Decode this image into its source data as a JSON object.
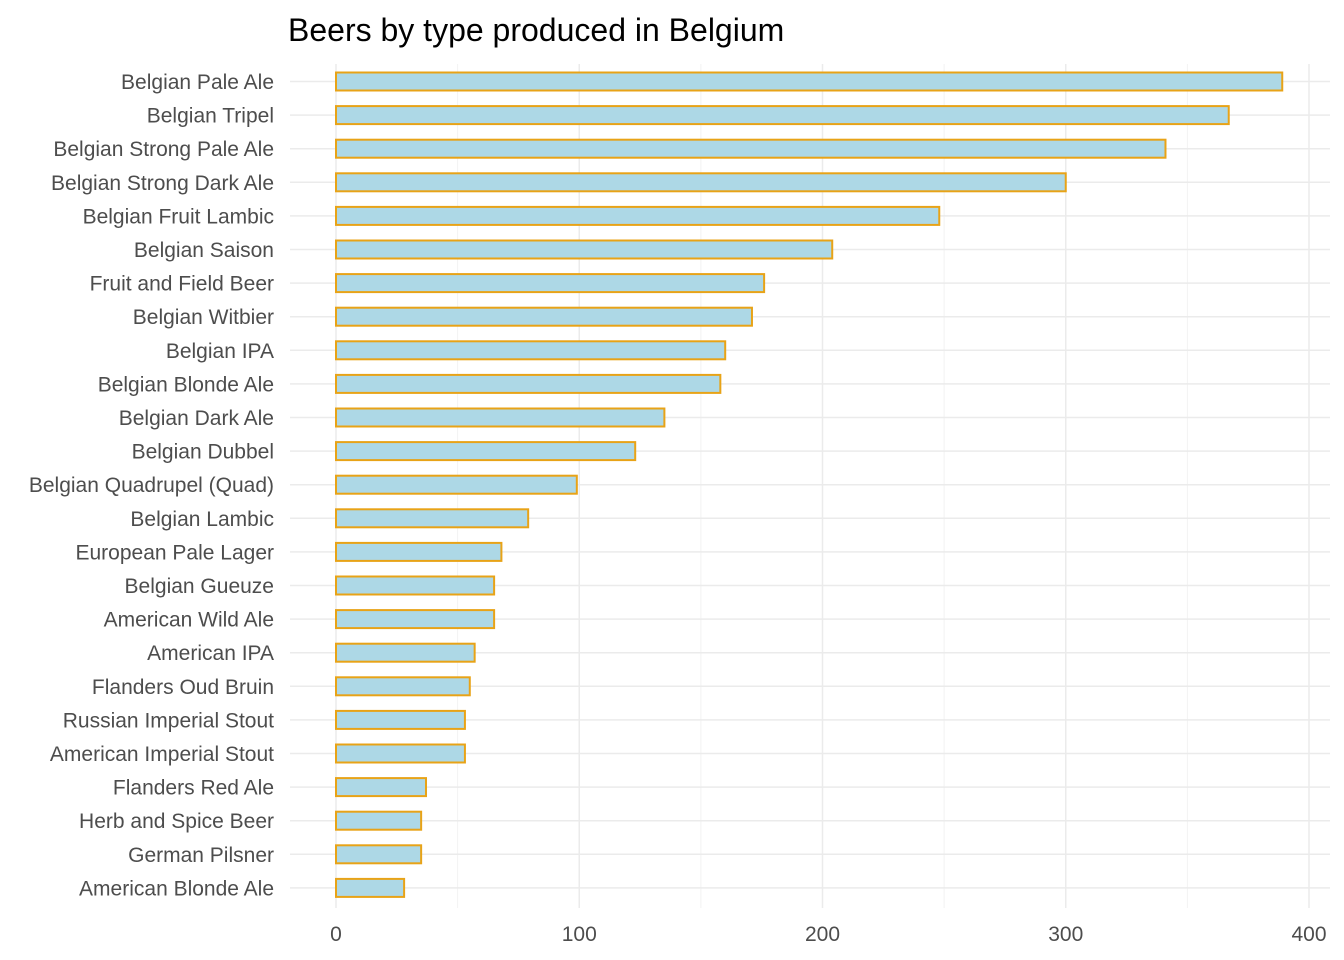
{
  "chart_data": {
    "type": "bar",
    "orientation": "horizontal",
    "title": "Beers by type produced in Belgium",
    "xlabel": "",
    "ylabel": "",
    "xlim": [
      0,
      400
    ],
    "xticks": [
      0,
      100,
      200,
      300,
      400
    ],
    "grid": true,
    "colors": {
      "bar_fill": "#add8e6",
      "bar_outline": "#e8a317"
    },
    "categories": [
      "Belgian Pale Ale",
      "Belgian Tripel",
      "Belgian Strong Pale Ale",
      "Belgian Strong Dark Ale",
      "Belgian Fruit Lambic",
      "Belgian Saison",
      "Fruit and Field Beer",
      "Belgian Witbier",
      "Belgian IPA",
      "Belgian Blonde Ale",
      "Belgian Dark Ale",
      "Belgian Dubbel",
      "Belgian Quadrupel (Quad)",
      "Belgian Lambic",
      "European Pale Lager",
      "Belgian Gueuze",
      "American Wild Ale",
      "American IPA",
      "Flanders Oud Bruin",
      "Russian Imperial Stout",
      "American Imperial Stout",
      "Flanders Red Ale",
      "Herb and Spice Beer",
      "German Pilsner",
      "American Blonde Ale"
    ],
    "values": [
      389,
      367,
      341,
      300,
      248,
      204,
      176,
      171,
      160,
      158,
      135,
      123,
      99,
      79,
      68,
      65,
      65,
      57,
      55,
      53,
      53,
      37,
      35,
      35,
      28
    ]
  }
}
